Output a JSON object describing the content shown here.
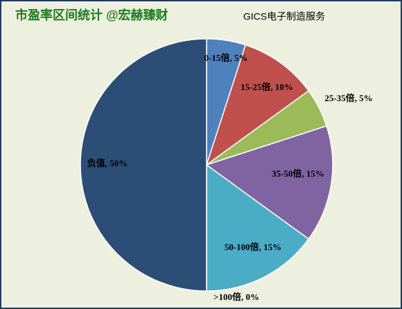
{
  "chart_data": {
    "type": "pie",
    "title": "市盈率区间统计 @宏赫臻财",
    "subtitle": "GICS电子制造服务",
    "values": [
      5,
      10,
      5,
      15,
      15,
      0,
      50
    ],
    "value_labels": [
      "0-15倍, 5%",
      "15-25倍, 10%",
      "25-35倍, 5%",
      "35-50倍, 15%",
      "50-100倍, 15%",
      ">100倍, 0%",
      "负值, 50%"
    ],
    "colors": [
      "#4f81bd",
      "#c0504d",
      "#9bbb59",
      "#8064a2",
      "#4bacc6",
      "#f79646",
      "#2c4d75"
    ]
  }
}
